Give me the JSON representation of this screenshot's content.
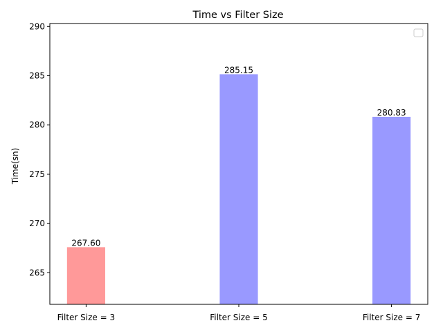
{
  "chart_data": {
    "type": "bar",
    "title": "Time vs Filter Size",
    "xlabel": "",
    "ylabel": "Time(sn)",
    "categories": [
      "Filter Size = 3",
      "Filter Size = 5",
      "Filter Size = 7"
    ],
    "values": [
      267.6,
      285.15,
      280.83
    ],
    "value_labels": [
      "267.60",
      "285.15",
      "280.83"
    ],
    "bar_colors": [
      "#ff9999",
      "#9999ff",
      "#9999ff"
    ],
    "ylim": [
      261.8,
      290.3
    ],
    "yticks": [
      265,
      270,
      275,
      280,
      285,
      290
    ],
    "grid": false,
    "legend": "top-right (empty)"
  }
}
